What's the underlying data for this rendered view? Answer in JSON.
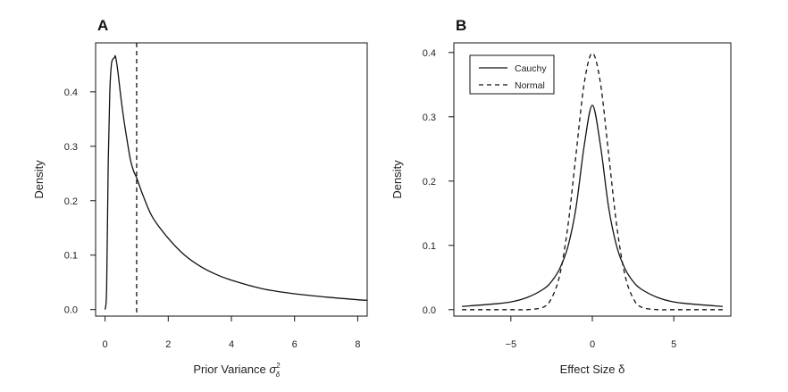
{
  "chart_data": [
    {
      "panel": "A",
      "type": "line",
      "xlabel": "Prior Variance σ²_δ",
      "xlabel_main": "Prior Variance ",
      "xlabel_symbol": "σ",
      "xlabel_sup": "2",
      "xlabel_sub": "δ",
      "ylabel": "Density",
      "xlim": [
        -0.3,
        8.3
      ],
      "ylim": [
        -0.012,
        0.49
      ],
      "xticks": [
        0,
        2,
        4,
        6,
        8
      ],
      "yticks": [
        0.0,
        0.1,
        0.2,
        0.3,
        0.4
      ],
      "ytick_labels": [
        "0.0",
        "0.1",
        "0.2",
        "0.3",
        "0.4"
      ],
      "series": [
        {
          "style": "solid",
          "x": [
            0.0,
            0.05,
            0.1,
            0.15,
            0.2,
            0.25,
            0.3,
            0.33,
            0.4,
            0.5,
            0.6,
            0.7,
            0.8,
            0.9,
            1.0,
            1.2,
            1.5,
            2.0,
            2.5,
            3.0,
            3.5,
            4.0,
            5.0,
            6.0,
            7.0,
            8.0,
            8.3
          ],
          "y": [
            0.0,
            0.04,
            0.271,
            0.4,
            0.45,
            0.46,
            0.463,
            0.465,
            0.44,
            0.39,
            0.347,
            0.31,
            0.276,
            0.255,
            0.242,
            0.21,
            0.17,
            0.131,
            0.101,
            0.08,
            0.065,
            0.054,
            0.038,
            0.029,
            0.023,
            0.018,
            0.017
          ]
        },
        {
          "style": "dashed",
          "vline_x": 1.0
        }
      ]
    },
    {
      "panel": "B",
      "type": "line",
      "xlabel": "Effect Size δ",
      "ylabel": "Density",
      "xlim": [
        -8.5,
        8.5
      ],
      "ylim": [
        -0.01,
        0.415
      ],
      "xticks": [
        -5,
        0,
        5
      ],
      "xtick_labels": [
        "−5",
        "0",
        "5"
      ],
      "yticks": [
        0.0,
        0.1,
        0.2,
        0.3,
        0.4
      ],
      "ytick_labels": [
        "0.0",
        "0.1",
        "0.2",
        "0.3",
        "0.4"
      ],
      "legend": {
        "placement": "top-left",
        "entries": [
          "Cauchy",
          "Normal"
        ]
      },
      "series": [
        {
          "name": "Cauchy",
          "style": "solid",
          "x": [
            -8,
            -6,
            -5,
            -4,
            -3,
            -2.5,
            -2,
            -1.5,
            -1,
            -0.5,
            0,
            0.5,
            1,
            1.5,
            2,
            2.5,
            3,
            4,
            5,
            6,
            8
          ],
          "y": [
            0.005,
            0.009,
            0.012,
            0.019,
            0.032,
            0.044,
            0.064,
            0.098,
            0.159,
            0.255,
            0.318,
            0.255,
            0.159,
            0.098,
            0.064,
            0.044,
            0.032,
            0.019,
            0.012,
            0.009,
            0.005
          ]
        },
        {
          "name": "Normal",
          "style": "dashed",
          "x": [
            -8,
            -5,
            -4,
            -3,
            -2.5,
            -2,
            -1.5,
            -1,
            -0.5,
            0,
            0.5,
            1,
            1.5,
            2,
            2.5,
            3,
            4,
            5,
            8
          ],
          "y": [
            0.0,
            0.0,
            0.0,
            0.004,
            0.018,
            0.054,
            0.13,
            0.242,
            0.352,
            0.399,
            0.352,
            0.242,
            0.13,
            0.054,
            0.018,
            0.004,
            0.0,
            0.0,
            0.0
          ]
        }
      ]
    }
  ],
  "panel_letters": [
    "A",
    "B"
  ]
}
